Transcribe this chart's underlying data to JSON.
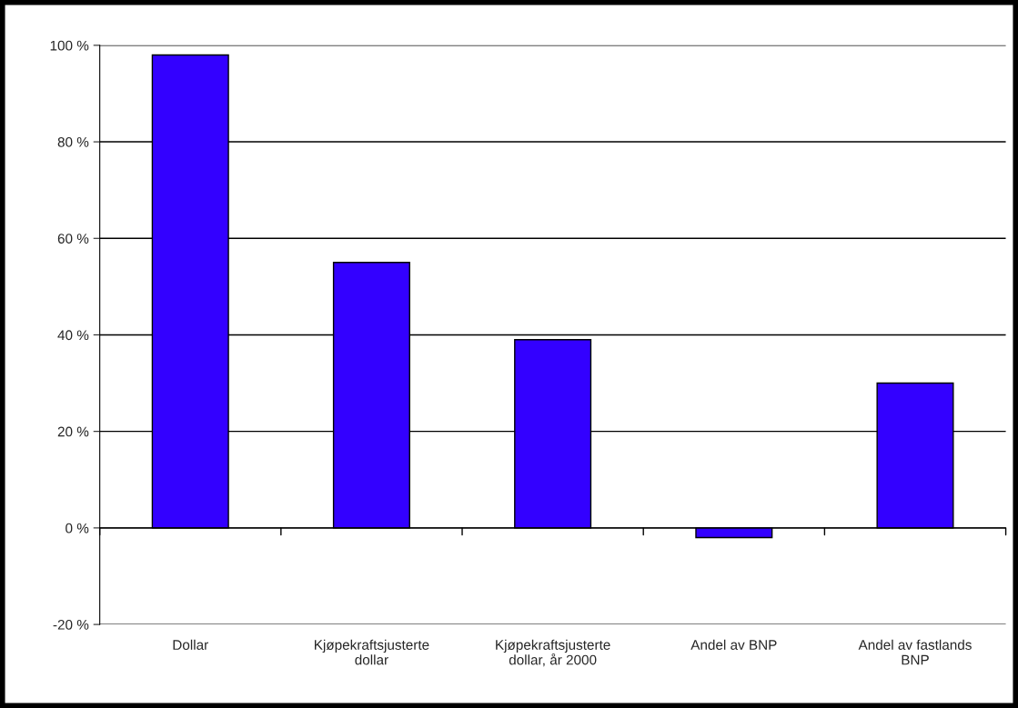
{
  "chart_data": {
    "type": "bar",
    "categories": [
      "Dollar",
      "Kjøpekraftsjusterte\ndollar",
      "Kjøpekraftsjusterte\ndollar, år 2000",
      "Andel av BNP",
      "Andel av fastlands\nBNP"
    ],
    "values": [
      98,
      55,
      39,
      -2,
      30
    ],
    "color": "#3300ff",
    "ylim": [
      -20,
      100
    ],
    "yticks": [
      {
        "value": -20,
        "label": "-20 %"
      },
      {
        "value": 0,
        "label": "0 %"
      },
      {
        "value": 20,
        "label": "20 %"
      },
      {
        "value": 40,
        "label": "40 %"
      },
      {
        "value": 60,
        "label": "60 %"
      },
      {
        "value": 80,
        "label": "80 %"
      },
      {
        "value": 100,
        "label": "100 %"
      }
    ],
    "grid": "y"
  }
}
